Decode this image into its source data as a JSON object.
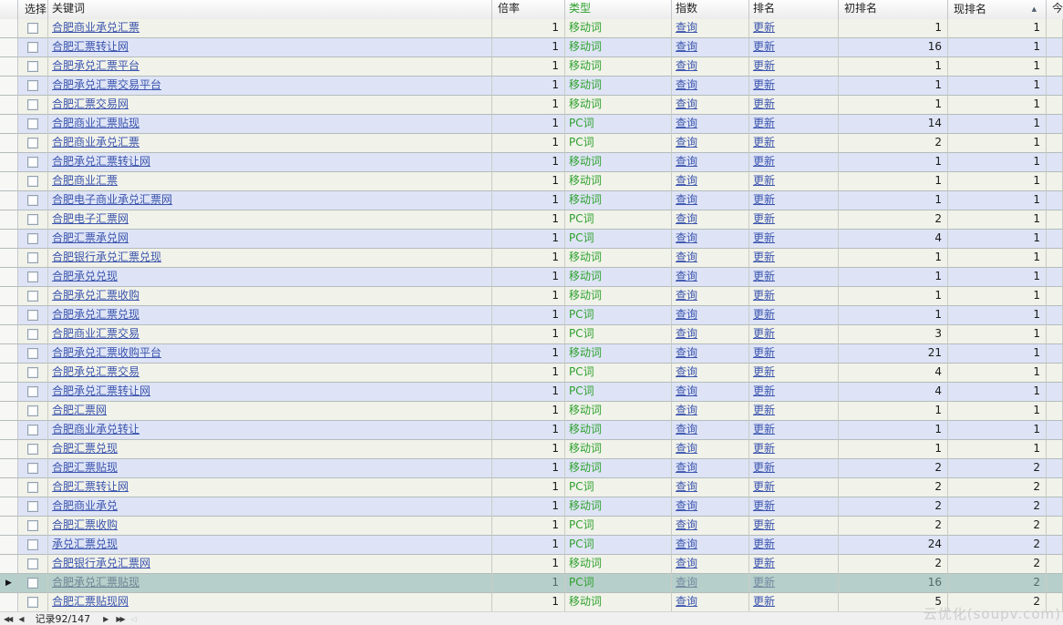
{
  "table": {
    "headers": {
      "select": "选择",
      "keyword": "关键词",
      "rate": "倍率",
      "type": "类型",
      "index": "指数",
      "rank": "排名",
      "init_rank": "初排名",
      "cur_rank": "现排名",
      "today": "今"
    },
    "sort_icon": "▲",
    "current_row_icon": "▶",
    "links": {
      "index": "查询",
      "rank": "更新"
    },
    "rows": [
      {
        "keyword": "合肥商业承兑汇票",
        "rate": "1",
        "type": "移动词",
        "init_rank": "1",
        "cur_rank": "1",
        "current": false
      },
      {
        "keyword": "合肥汇票转让网",
        "rate": "1",
        "type": "移动词",
        "init_rank": "16",
        "cur_rank": "1",
        "current": false
      },
      {
        "keyword": "合肥承兑汇票平台",
        "rate": "1",
        "type": "移动词",
        "init_rank": "1",
        "cur_rank": "1",
        "current": false
      },
      {
        "keyword": "合肥承兑汇票交易平台",
        "rate": "1",
        "type": "移动词",
        "init_rank": "1",
        "cur_rank": "1",
        "current": false
      },
      {
        "keyword": "合肥汇票交易网",
        "rate": "1",
        "type": "移动词",
        "init_rank": "1",
        "cur_rank": "1",
        "current": false
      },
      {
        "keyword": "合肥商业汇票贴现",
        "rate": "1",
        "type": "PC词",
        "init_rank": "14",
        "cur_rank": "1",
        "current": false
      },
      {
        "keyword": "合肥商业承兑汇票",
        "rate": "1",
        "type": "PC词",
        "init_rank": "2",
        "cur_rank": "1",
        "current": false
      },
      {
        "keyword": "合肥承兑汇票转让网",
        "rate": "1",
        "type": "移动词",
        "init_rank": "1",
        "cur_rank": "1",
        "current": false
      },
      {
        "keyword": "合肥商业汇票",
        "rate": "1",
        "type": "移动词",
        "init_rank": "1",
        "cur_rank": "1",
        "current": false
      },
      {
        "keyword": "合肥电子商业承兑汇票网",
        "rate": "1",
        "type": "移动词",
        "init_rank": "1",
        "cur_rank": "1",
        "current": false
      },
      {
        "keyword": "合肥电子汇票网",
        "rate": "1",
        "type": "PC词",
        "init_rank": "2",
        "cur_rank": "1",
        "current": false
      },
      {
        "keyword": "合肥汇票承兑网",
        "rate": "1",
        "type": "PC词",
        "init_rank": "4",
        "cur_rank": "1",
        "current": false
      },
      {
        "keyword": "合肥银行承兑汇票兑现",
        "rate": "1",
        "type": "移动词",
        "init_rank": "1",
        "cur_rank": "1",
        "current": false
      },
      {
        "keyword": "合肥承兑兑现",
        "rate": "1",
        "type": "移动词",
        "init_rank": "1",
        "cur_rank": "1",
        "current": false
      },
      {
        "keyword": "合肥承兑汇票收购",
        "rate": "1",
        "type": "移动词",
        "init_rank": "1",
        "cur_rank": "1",
        "current": false
      },
      {
        "keyword": "合肥承兑汇票兑现",
        "rate": "1",
        "type": "PC词",
        "init_rank": "1",
        "cur_rank": "1",
        "current": false
      },
      {
        "keyword": "合肥商业汇票交易",
        "rate": "1",
        "type": "PC词",
        "init_rank": "3",
        "cur_rank": "1",
        "current": false
      },
      {
        "keyword": "合肥承兑汇票收购平台",
        "rate": "1",
        "type": "移动词",
        "init_rank": "21",
        "cur_rank": "1",
        "current": false
      },
      {
        "keyword": "合肥承兑汇票交易",
        "rate": "1",
        "type": "PC词",
        "init_rank": "4",
        "cur_rank": "1",
        "current": false
      },
      {
        "keyword": "合肥承兑汇票转让网",
        "rate": "1",
        "type": "PC词",
        "init_rank": "4",
        "cur_rank": "1",
        "current": false
      },
      {
        "keyword": "合肥汇票网",
        "rate": "1",
        "type": "移动词",
        "init_rank": "1",
        "cur_rank": "1",
        "current": false
      },
      {
        "keyword": "合肥商业承兑转让",
        "rate": "1",
        "type": "移动词",
        "init_rank": "1",
        "cur_rank": "1",
        "current": false
      },
      {
        "keyword": "合肥汇票兑现",
        "rate": "1",
        "type": "移动词",
        "init_rank": "1",
        "cur_rank": "1",
        "current": false
      },
      {
        "keyword": "合肥汇票贴现",
        "rate": "1",
        "type": "移动词",
        "init_rank": "2",
        "cur_rank": "2",
        "current": false
      },
      {
        "keyword": "合肥汇票转让网",
        "rate": "1",
        "type": "PC词",
        "init_rank": "2",
        "cur_rank": "2",
        "current": false
      },
      {
        "keyword": "合肥商业承兑",
        "rate": "1",
        "type": "移动词",
        "init_rank": "2",
        "cur_rank": "2",
        "current": false
      },
      {
        "keyword": "合肥汇票收购",
        "rate": "1",
        "type": "PC词",
        "init_rank": "2",
        "cur_rank": "2",
        "current": false
      },
      {
        "keyword": "承兑汇票兑现",
        "rate": "1",
        "type": "PC词",
        "init_rank": "24",
        "cur_rank": "2",
        "current": false
      },
      {
        "keyword": "合肥银行承兑汇票网",
        "rate": "1",
        "type": "移动词",
        "init_rank": "2",
        "cur_rank": "2",
        "current": false
      },
      {
        "keyword": "合肥承兑汇票贴现",
        "rate": "1",
        "type": "PC词",
        "init_rank": "16",
        "cur_rank": "2",
        "current": true
      },
      {
        "keyword": "合肥汇票贴现网",
        "rate": "1",
        "type": "移动词",
        "init_rank": "5",
        "cur_rank": "2",
        "current": false
      }
    ]
  },
  "pager": {
    "record_text": "记录92/147",
    "icons": {
      "first": "◀◀",
      "prev": "◀",
      "next": "▶",
      "last": "▶▶",
      "extra": "◁"
    }
  },
  "watermark": "云优化(soupv.com)",
  "colors": {
    "link_blue": "#3b54ae",
    "type_green": "#2da02d",
    "row_cream": "#f1f2e9",
    "row_blue": "#dee4f6",
    "row_current": "#b7cfca"
  }
}
